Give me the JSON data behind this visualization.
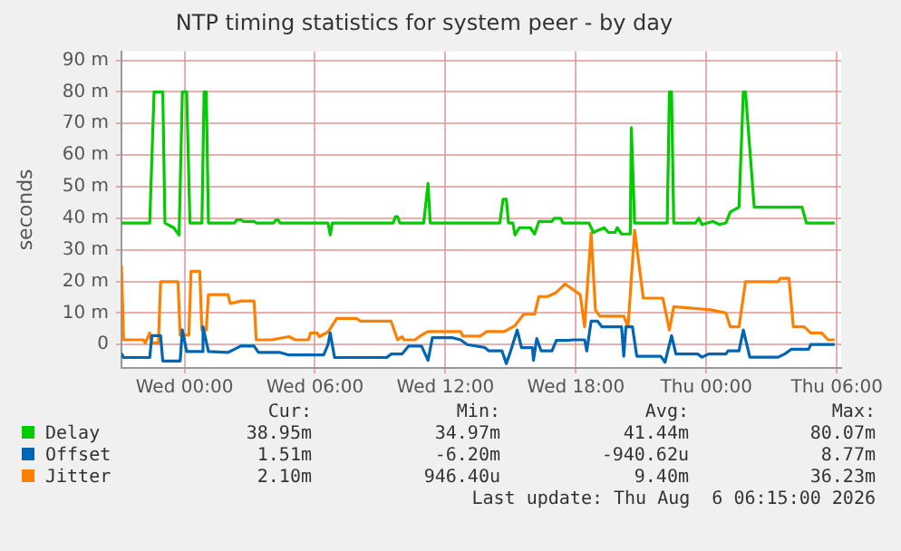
{
  "chart_data": {
    "type": "line",
    "title": "NTP timing statistics for system peer - by day",
    "ylabel": "seconds",
    "xlim": [
      "2026-08-04T21:06",
      "2026-08-06T06:12"
    ],
    "ylim": [
      -7.4,
      92.8
    ],
    "xticks": [
      {
        "value": "2026-08-05T00:00",
        "label": "Wed 00:00"
      },
      {
        "value": "2026-08-05T06:00",
        "label": "Wed 06:00"
      },
      {
        "value": "2026-08-05T12:00",
        "label": "Wed 12:00"
      },
      {
        "value": "2026-08-05T18:00",
        "label": "Wed 18:00"
      },
      {
        "value": "2026-08-06T00:00",
        "label": "Thu 00:00"
      },
      {
        "value": "2026-08-06T06:00",
        "label": "Thu 06:00"
      }
    ],
    "yticks": [
      0,
      {
        "value": 10,
        "label": "10 m"
      },
      {
        "value": 20,
        "label": "20 m"
      },
      {
        "value": 30,
        "label": "30 m"
      },
      {
        "value": 40,
        "label": "40 m"
      },
      {
        "value": 50,
        "label": "50 m"
      },
      {
        "value": 60,
        "label": "60 m"
      },
      {
        "value": 70,
        "label": "70 m"
      },
      {
        "value": 80,
        "label": "80 m"
      },
      {
        "value": 90,
        "label": "90 m"
      }
    ],
    "grid": true,
    "legend": "bottom",
    "marker": "none",
    "line_style": "solid",
    "series": [
      {
        "name": "Delay",
        "color": "#00cc00",
        "x": [
          "2026-08-04T21:06",
          "2026-08-04T22:24",
          "2026-08-04T22:36",
          "2026-08-04T23:00",
          "2026-08-04T23:06",
          "2026-08-04T23:30",
          "2026-08-04T23:45",
          "2026-08-04T23:54",
          "2026-08-05T00:06",
          "2026-08-05T00:15",
          "2026-08-05T00:48",
          "2026-08-05T00:54",
          "2026-08-05T01:00",
          "2026-08-05T01:06",
          "2026-08-05T02:18",
          "2026-08-05T02:24",
          "2026-08-05T02:36",
          "2026-08-05T02:42",
          "2026-08-05T03:12",
          "2026-08-05T03:18",
          "2026-08-05T04:06",
          "2026-08-05T04:12",
          "2026-08-05T04:18",
          "2026-08-05T04:24",
          "2026-08-05T06:36",
          "2026-08-05T06:42",
          "2026-08-05T06:48",
          "2026-08-05T09:36",
          "2026-08-05T09:42",
          "2026-08-05T09:48",
          "2026-08-05T09:54",
          "2026-08-05T11:00",
          "2026-08-05T11:12",
          "2026-08-05T11:18",
          "2026-08-05T14:30",
          "2026-08-05T14:39",
          "2026-08-05T14:48",
          "2026-08-05T14:54",
          "2026-08-05T15:06",
          "2026-08-05T15:12",
          "2026-08-05T15:24",
          "2026-08-05T15:54",
          "2026-08-05T16:06",
          "2026-08-05T16:18",
          "2026-08-05T16:54",
          "2026-08-05T17:00",
          "2026-08-05T17:18",
          "2026-08-05T17:24",
          "2026-08-05T18:36",
          "2026-08-05T18:48",
          "2026-08-05T19:18",
          "2026-08-05T19:30",
          "2026-08-05T19:48",
          "2026-08-05T19:54",
          "2026-08-05T20:06",
          "2026-08-05T20:30",
          "2026-08-05T20:33",
          "2026-08-05T20:42",
          "2026-08-05T22:12",
          "2026-08-05T22:18",
          "2026-08-05T22:24",
          "2026-08-05T22:30",
          "2026-08-05T23:30",
          "2026-08-05T23:39",
          "2026-08-05T23:48",
          "2026-08-06T00:18",
          "2026-08-06T00:36",
          "2026-08-06T00:54",
          "2026-08-06T01:06",
          "2026-08-06T01:30",
          "2026-08-06T01:42",
          "2026-08-06T01:48",
          "2026-08-06T02:12",
          "2026-08-06T04:24",
          "2026-08-06T04:36",
          "2026-08-06T05:54"
        ],
        "values": [
          38.5,
          38.5,
          80,
          80,
          38.5,
          37,
          34.7,
          80,
          80,
          38.5,
          38.5,
          80,
          80,
          38.5,
          38.5,
          39.5,
          39.5,
          39,
          39,
          38.5,
          38.5,
          39.5,
          39.5,
          38.5,
          38.5,
          34.7,
          38.5,
          38.5,
          40.5,
          40.5,
          38.5,
          38.5,
          51,
          38.5,
          38.5,
          46,
          46,
          38.5,
          38.5,
          34.7,
          37,
          37,
          35,
          39,
          39,
          40,
          40,
          38.5,
          38.5,
          35.5,
          37,
          35.5,
          35.5,
          37,
          35,
          35,
          68.7,
          38.5,
          38.5,
          80,
          80,
          38.5,
          38.5,
          40,
          38,
          39,
          38,
          38.5,
          42,
          43.5,
          80,
          80,
          43.5,
          43.5,
          38.5,
          38.5
        ]
      },
      {
        "name": "Offset",
        "color": "#0066b3",
        "x": [
          "2026-08-04T21:06",
          "2026-08-04T21:12",
          "2026-08-04T22:24",
          "2026-08-04T22:30",
          "2026-08-04T22:54",
          "2026-08-04T23:00",
          "2026-08-04T23:48",
          "2026-08-04T23:54",
          "2026-08-05T00:06",
          "2026-08-05T00:48",
          "2026-08-05T00:51",
          "2026-08-05T01:06",
          "2026-08-05T02:00",
          "2026-08-05T02:36",
          "2026-08-05T03:12",
          "2026-08-05T03:24",
          "2026-08-05T04:24",
          "2026-08-05T04:48",
          "2026-08-05T06:24",
          "2026-08-05T06:36",
          "2026-08-05T06:42",
          "2026-08-05T06:54",
          "2026-08-05T09:18",
          "2026-08-05T09:30",
          "2026-08-05T10:00",
          "2026-08-05T10:18",
          "2026-08-05T10:54",
          "2026-08-05T11:12",
          "2026-08-05T11:24",
          "2026-08-05T12:18",
          "2026-08-05T12:42",
          "2026-08-05T13:00",
          "2026-08-05T13:48",
          "2026-08-05T14:00",
          "2026-08-05T14:36",
          "2026-08-05T14:48",
          "2026-08-05T15:00",
          "2026-08-05T15:18",
          "2026-08-05T15:30",
          "2026-08-05T16:00",
          "2026-08-05T16:03",
          "2026-08-05T16:12",
          "2026-08-05T16:24",
          "2026-08-05T16:54",
          "2026-08-05T17:06",
          "2026-08-05T17:36",
          "2026-08-05T17:54",
          "2026-08-05T18:24",
          "2026-08-05T18:30",
          "2026-08-05T18:42",
          "2026-08-05T19:00",
          "2026-08-05T19:12",
          "2026-08-05T20:06",
          "2026-08-05T20:12",
          "2026-08-05T20:18",
          "2026-08-05T20:36",
          "2026-08-05T20:48",
          "2026-08-05T21:54",
          "2026-08-05T22:06",
          "2026-08-05T22:24",
          "2026-08-05T22:36",
          "2026-08-05T23:36",
          "2026-08-05T23:48",
          "2026-08-06T00:06",
          "2026-08-06T00:54",
          "2026-08-06T01:00",
          "2026-08-06T01:30",
          "2026-08-06T01:42",
          "2026-08-06T02:00",
          "2026-08-06T03:18",
          "2026-08-06T03:36",
          "2026-08-06T03:54",
          "2026-08-06T04:42",
          "2026-08-06T04:48",
          "2026-08-06T05:54"
        ],
        "values": [
          -2.8,
          -4.1,
          -4.1,
          2.8,
          2.8,
          -5.2,
          -5.2,
          4.6,
          -2.2,
          -2.2,
          5.6,
          -2.2,
          -2.5,
          -0.4,
          -0.5,
          -2.5,
          -2.5,
          -3.3,
          -3.3,
          0,
          3.7,
          -4.1,
          -4.1,
          -3,
          -3,
          -0.5,
          -0.5,
          -5,
          2.2,
          2.2,
          1.5,
          0,
          -0.9,
          -2,
          -2,
          -6,
          -2,
          4.6,
          -1,
          -1,
          -5,
          1.9,
          -2,
          -2,
          1.3,
          1.3,
          1.5,
          1.5,
          -2,
          7.4,
          7.4,
          5.6,
          5.6,
          -3.7,
          5.6,
          5.6,
          -3.7,
          -3.7,
          -5.6,
          2.8,
          -3,
          -3,
          -4,
          -3,
          -3,
          -2,
          -2,
          4.6,
          -4,
          -4,
          -3,
          -1.5,
          -1.5,
          0,
          0
        ]
      },
      {
        "name": "Jitter",
        "color": "#ff8000",
        "x": [
          "2026-08-04T21:06",
          "2026-08-04T21:12",
          "2026-08-04T22:06",
          "2026-08-04T22:12",
          "2026-08-04T22:24",
          "2026-08-04T22:30",
          "2026-08-04T22:48",
          "2026-08-04T22:54",
          "2026-08-04T23:42",
          "2026-08-04T23:48",
          "2026-08-05T00:12",
          "2026-08-05T00:18",
          "2026-08-05T00:42",
          "2026-08-05T00:48",
          "2026-08-05T01:00",
          "2026-08-05T01:06",
          "2026-08-05T02:00",
          "2026-08-05T02:06",
          "2026-08-05T02:36",
          "2026-08-05T03:12",
          "2026-08-05T03:18",
          "2026-08-05T04:00",
          "2026-08-05T04:48",
          "2026-08-05T05:06",
          "2026-08-05T05:42",
          "2026-08-05T05:48",
          "2026-08-05T06:06",
          "2026-08-05T06:12",
          "2026-08-05T06:36",
          "2026-08-05T07:00",
          "2026-08-05T07:54",
          "2026-08-05T08:06",
          "2026-08-05T09:30",
          "2026-08-05T09:48",
          "2026-08-05T10:00",
          "2026-08-05T10:06",
          "2026-08-05T10:36",
          "2026-08-05T10:54",
          "2026-08-05T11:12",
          "2026-08-05T12:42",
          "2026-08-05T12:48",
          "2026-08-05T13:36",
          "2026-08-05T13:54",
          "2026-08-05T14:42",
          "2026-08-05T15:12",
          "2026-08-05T15:36",
          "2026-08-05T16:06",
          "2026-08-05T16:18",
          "2026-08-05T16:42",
          "2026-08-05T17:06",
          "2026-08-05T17:30",
          "2026-08-05T18:12",
          "2026-08-05T18:24",
          "2026-08-05T18:42",
          "2026-08-05T18:54",
          "2026-08-05T19:06",
          "2026-08-05T20:12",
          "2026-08-05T20:24",
          "2026-08-05T20:42",
          "2026-08-05T21:06",
          "2026-08-05T22:00",
          "2026-08-05T22:18",
          "2026-08-05T22:30",
          "2026-08-06T00:12",
          "2026-08-06T00:54",
          "2026-08-06T01:06",
          "2026-08-06T01:30",
          "2026-08-06T01:48",
          "2026-08-06T03:18",
          "2026-08-06T03:24",
          "2026-08-06T03:48",
          "2026-08-06T04:00",
          "2026-08-06T04:30",
          "2026-08-06T04:48",
          "2026-08-06T05:18",
          "2026-08-06T05:36",
          "2026-08-06T05:54"
        ],
        "values": [
          25,
          1.5,
          1.5,
          0.5,
          3.7,
          0.5,
          0.5,
          19.9,
          19.9,
          3,
          3,
          23.2,
          23.2,
          4.6,
          4.6,
          15.8,
          15.8,
          13,
          13.8,
          13.8,
          1.5,
          1.5,
          2.5,
          1.5,
          1.5,
          3.7,
          3.7,
          2.5,
          4,
          8.3,
          8.3,
          7.4,
          7.4,
          1.5,
          2.5,
          1.5,
          1.5,
          3,
          4.1,
          4.1,
          2.7,
          2.7,
          4.1,
          4.1,
          6,
          9.6,
          9.6,
          15.2,
          15.2,
          16.5,
          19.2,
          15.8,
          5.6,
          35.3,
          10.9,
          9,
          9,
          5.6,
          36.2,
          14.7,
          14.7,
          4.6,
          12,
          11,
          10,
          5.6,
          5.6,
          19.9,
          19.9,
          21,
          21,
          5.6,
          5.6,
          3.7,
          3.7,
          1.5,
          1.5
        ]
      }
    ],
    "annotations": [
      "Cur:",
      "Min:",
      "Avg:",
      "Max:",
      "38.95m",
      "34.97m",
      "41.44m",
      "80.07m",
      "1.51m",
      "-6.20m",
      "-940.62u",
      "8.77m",
      "2.10m",
      "946.40u",
      "9.40m",
      "36.23m",
      "Last update: Thu Aug  6 06:15:00 2026"
    ]
  }
}
